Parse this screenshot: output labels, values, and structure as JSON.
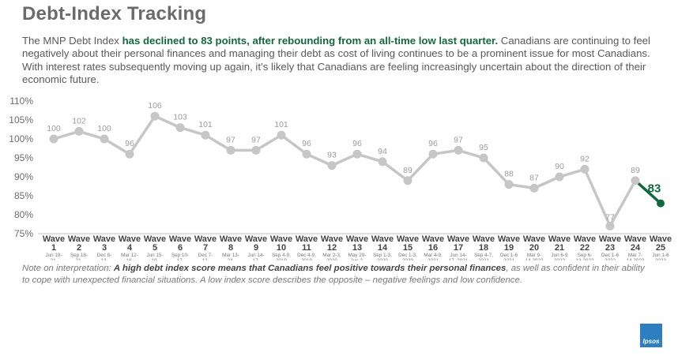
{
  "page": {
    "title": "Debt-Index Tracking",
    "intro": {
      "lead": "The MNP Debt Index ",
      "highlight": "has declined to 83 points, after rebounding from an all-time low last quarter.",
      "rest": " Canadians are continuing to feel negatively about their personal finances and managing their debt as cost of living continues to be a prominent issue for most Canadians. With interest rates subsequently moving up again, it’s likely that Canadians are feeling increasingly uncertain about the direction of their economic future."
    },
    "note": {
      "lead": "Note on interpretation: ",
      "bold": "A high debt index score means that Canadians feel positive towards their personal finances",
      "rest": ", as well as confident in their ability to cope with unexpected financial situations. A low index score describes the opposite – negative feelings and low confidence."
    },
    "logo_text": "Ipsos"
  },
  "colors": {
    "series": "#c6c6c6",
    "highlight": "#0f6b3e",
    "axis_text": "#6b6b6b",
    "label_text": "#9a9a9a"
  },
  "chart_data": {
    "type": "line",
    "title": "",
    "xlabel": "",
    "ylabel": "",
    "ylim": [
      75,
      110
    ],
    "yticks": [
      75,
      80,
      85,
      90,
      95,
      100,
      105,
      110
    ],
    "ytick_labels": [
      "75%",
      "80%",
      "85%",
      "90%",
      "95%",
      "100%",
      "105%",
      "110%"
    ],
    "wave_word": "Wave",
    "categories": [
      "1",
      "2",
      "3",
      "4",
      "5",
      "6",
      "7",
      "8",
      "9",
      "10",
      "11",
      "12",
      "13",
      "14",
      "15",
      "16",
      "17",
      "18",
      "19",
      "20",
      "21",
      "22",
      "23",
      "24",
      "25"
    ],
    "dates": [
      [
        "Jun 19-",
        "21,",
        "2017"
      ],
      [
        "Sep 18-",
        "21,",
        "2017"
      ],
      [
        "Dec 8-",
        "13,",
        "2017"
      ],
      [
        "Mar 12-",
        "16,",
        "2018"
      ],
      [
        "Jun 15-",
        "19,",
        "2018"
      ],
      [
        "Sep 10-",
        "17,",
        "2018"
      ],
      [
        "Dec 7-",
        "12,",
        "2018"
      ],
      [
        "Mar 13-",
        "24,",
        "2019"
      ],
      [
        "Jun 14-",
        "17,",
        "2019"
      ],
      [
        "Sep 4-9,",
        "2019"
      ],
      [
        "Dec 4-9,",
        "2019"
      ],
      [
        "Mar 2-3,",
        "2020"
      ],
      [
        "May 29-",
        "Jun 2,",
        "2020"
      ],
      [
        "Sep 1-3,",
        "2020"
      ],
      [
        "Dec 1-3,",
        "2020"
      ],
      [
        "Mar 4-9,",
        "2021"
      ],
      [
        "Jun 14-",
        "17, 2021"
      ],
      [
        "Sep 4-7,",
        "2021"
      ],
      [
        "Dec 1-6",
        "2021"
      ],
      [
        "Mar 9-",
        "14 2022"
      ],
      [
        "Jun 6-9",
        "2022"
      ],
      [
        "Sep 6-",
        "13 2022"
      ],
      [
        "Dec 1-6",
        "2022"
      ],
      [
        "Mar 7-",
        "14 2023"
      ],
      [
        "Jun 1-6",
        "2023"
      ]
    ],
    "series": [
      {
        "name": "MNP Debt Index",
        "values": [
          100,
          102,
          100,
          96,
          106,
          103,
          101,
          97,
          97,
          101,
          96,
          93,
          96,
          94,
          89,
          96,
          97,
          95,
          88,
          87,
          90,
          92,
          77,
          89,
          83
        ],
        "value_labels": [
          "100",
          "102",
          "100",
          "96",
          "106",
          "103",
          "101",
          "97",
          "97",
          "101",
          "96",
          "93",
          "96",
          "94",
          "89",
          "96",
          "97",
          "95",
          "88",
          "87",
          "90",
          "92",
          "77",
          "89",
          "83"
        ]
      }
    ],
    "highlight_index": 24
  }
}
